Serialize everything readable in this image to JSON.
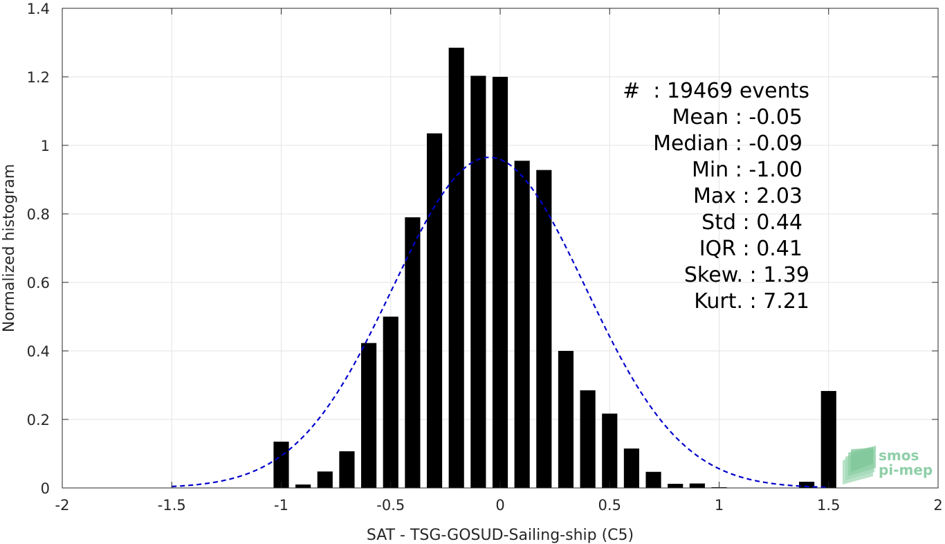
{
  "chart_data": {
    "type": "bar",
    "xlabel": "SAT - TSG-GOSUD-Sailing-ship (C5)",
    "ylabel": "Normalized histogram",
    "xlim": [
      -2,
      2
    ],
    "ylim": [
      0,
      1.4
    ],
    "xticks": [
      -2,
      -1.5,
      -1,
      -0.5,
      0,
      0.5,
      1,
      1.5,
      2
    ],
    "xtick_labels": [
      "-2",
      "-1.5",
      "-1",
      "-0.5",
      "0",
      "0.5",
      "1",
      "1.5",
      "2"
    ],
    "yticks": [
      0,
      0.2,
      0.4,
      0.6,
      0.8,
      1,
      1.2,
      1.4
    ],
    "ytick_labels": [
      "0",
      "0.2",
      "0.4",
      "0.6",
      "0.8",
      "1",
      "1.2",
      "1.4"
    ],
    "grid": true,
    "bar_color": "#000000",
    "bar_width": 0.07,
    "bins": [
      {
        "x": -1.0,
        "y": 0.135
      },
      {
        "x": -0.9,
        "y": 0.01
      },
      {
        "x": -0.8,
        "y": 0.048
      },
      {
        "x": -0.7,
        "y": 0.107
      },
      {
        "x": -0.6,
        "y": 0.423
      },
      {
        "x": -0.5,
        "y": 0.5
      },
      {
        "x": -0.4,
        "y": 0.79
      },
      {
        "x": -0.3,
        "y": 1.035
      },
      {
        "x": -0.2,
        "y": 1.285
      },
      {
        "x": -0.1,
        "y": 1.203
      },
      {
        "x": 0.0,
        "y": 1.2
      },
      {
        "x": 0.1,
        "y": 0.955
      },
      {
        "x": 0.2,
        "y": 0.928
      },
      {
        "x": 0.3,
        "y": 0.4
      },
      {
        "x": 0.4,
        "y": 0.285
      },
      {
        "x": 0.5,
        "y": 0.217
      },
      {
        "x": 0.6,
        "y": 0.115
      },
      {
        "x": 0.7,
        "y": 0.047
      },
      {
        "x": 0.8,
        "y": 0.012
      },
      {
        "x": 0.9,
        "y": 0.013
      },
      {
        "x": 1.0,
        "y": 0.002
      },
      {
        "x": 1.4,
        "y": 0.018
      },
      {
        "x": 1.5,
        "y": 0.283
      }
    ],
    "fit_curve": {
      "type": "gaussian",
      "mean": -0.05,
      "std": 0.44,
      "peak": 0.965,
      "x_range": [
        -1.5,
        1.5
      ],
      "color": "#0000cc",
      "style": "dashed"
    },
    "stats": [
      "#  : 19469 events",
      "Mean : -0.05",
      "Median : -0.09",
      "Min : -1.00",
      "Max : 2.03",
      "Std : 0.44",
      "IQR : 0.41",
      "Skew. : 1.39",
      "Kurt. : 7.21"
    ]
  },
  "logo": {
    "line1": "smos",
    "line2": "pi-mep",
    "color": "#8fcfa8"
  }
}
